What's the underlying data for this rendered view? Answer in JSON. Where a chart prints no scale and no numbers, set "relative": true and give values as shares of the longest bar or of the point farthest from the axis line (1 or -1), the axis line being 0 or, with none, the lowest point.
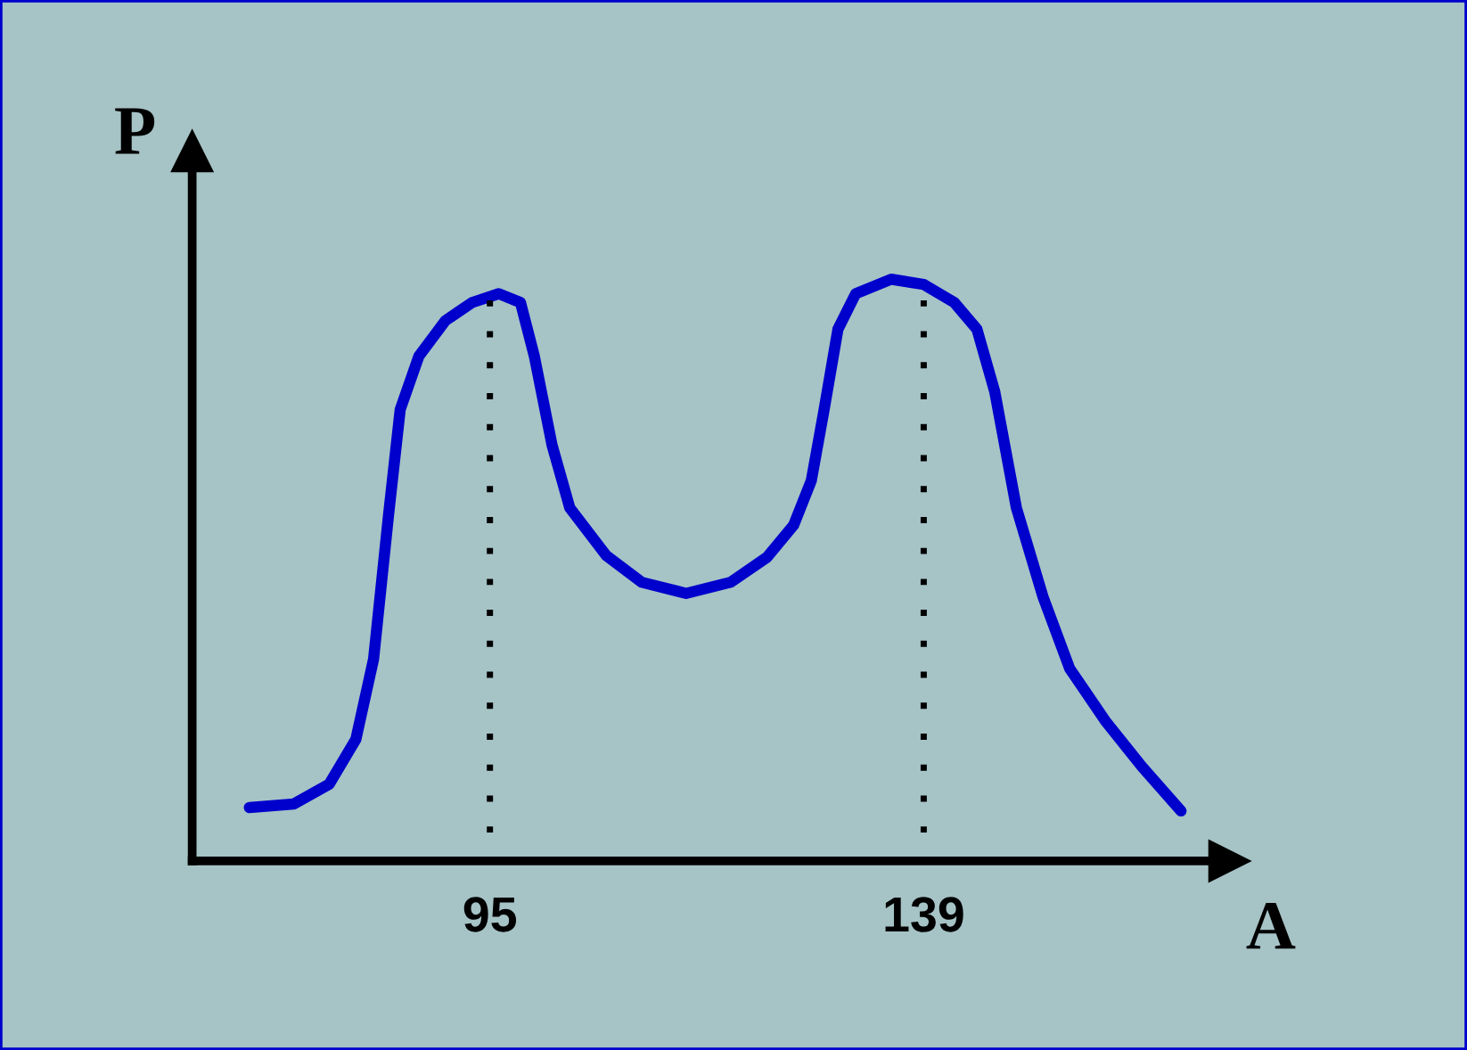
{
  "chart_data": {
    "type": "line",
    "xlabel": "A",
    "ylabel": "P",
    "relative": true,
    "x": [
      70.6,
      75.1,
      78.7,
      81.4,
      83.2,
      84.7,
      85.9,
      87.8,
      90.5,
      93.2,
      95.9,
      98.1,
      99.5,
      101.3,
      103.1,
      106.8,
      110.4,
      114.9,
      119.4,
      123.1,
      125.8,
      127.6,
      128.9,
      130.3,
      132.1,
      135.7,
      139.0,
      142.1,
      144.4,
      146.2,
      148.4,
      151.1,
      153.8,
      157.5,
      161.1,
      165.1
    ],
    "series": [
      {
        "color": "#0000cc",
        "values": [
          0.092,
          0.098,
          0.132,
          0.209,
          0.347,
          0.592,
          0.776,
          0.868,
          0.929,
          0.96,
          0.975,
          0.96,
          0.868,
          0.715,
          0.607,
          0.525,
          0.479,
          0.46,
          0.479,
          0.522,
          0.577,
          0.654,
          0.776,
          0.914,
          0.975,
          1.0,
          0.991,
          0.96,
          0.914,
          0.807,
          0.607,
          0.454,
          0.331,
          0.239,
          0.163,
          0.086
        ]
      }
    ],
    "xlim": [
      64.8,
      170
    ],
    "xticks": [
      95,
      139
    ],
    "ref_lines": [
      {
        "axis": "x",
        "value": 95,
        "color": "#000000",
        "line_style": "dotted"
      },
      {
        "axis": "x",
        "value": 139,
        "color": "#000000",
        "line_style": "dotted"
      }
    ],
    "grid": false,
    "legend": false,
    "marker": "none",
    "line_style": "solid"
  }
}
